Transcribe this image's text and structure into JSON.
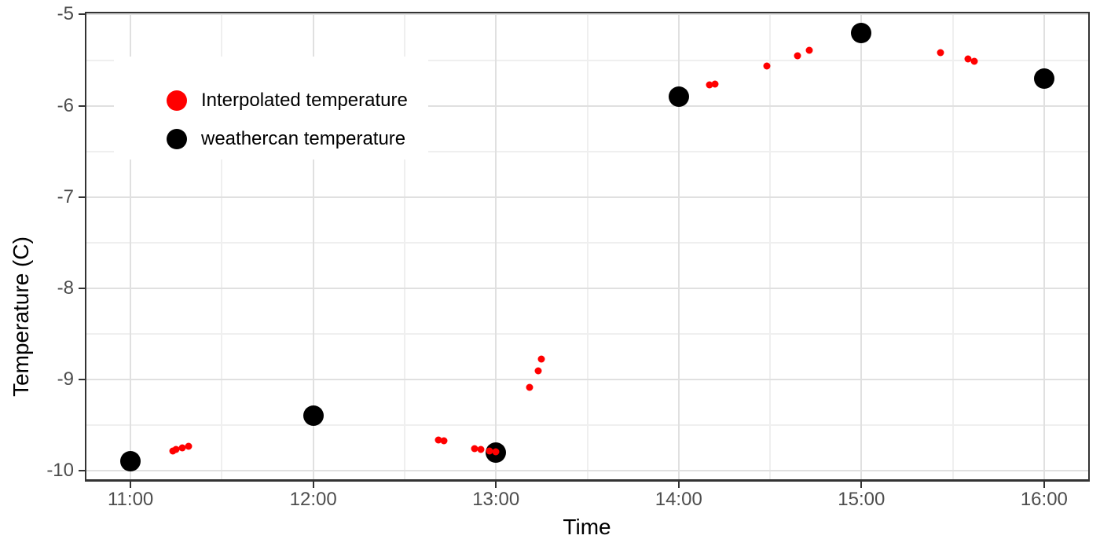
{
  "chart_data": {
    "type": "scatter",
    "title": "",
    "xlabel": "Time",
    "ylabel": "Temperature (C)",
    "grid": true,
    "colors": {
      "background": "#FFFFFF",
      "panel_border": "#333333",
      "grid_major": "#E0E0E0",
      "grid_minor": "#EFEFEF",
      "tick_mark": "#333333",
      "tick_label": "#4D4D4D",
      "axis_title": "#000000",
      "interpolated_point": "#FF0000",
      "weathercan_point": "#000000"
    },
    "x_axis": {
      "domain": [
        "10:45",
        "16:15"
      ],
      "ticks": [
        "11:00",
        "12:00",
        "13:00",
        "14:00",
        "15:00",
        "16:00"
      ],
      "minor_ticks": [
        "11:30",
        "12:30",
        "13:30",
        "14:30",
        "15:30"
      ]
    },
    "y_axis": {
      "domain": [
        -10.12,
        -4.97
      ],
      "ticks": [
        -5,
        -6,
        -7,
        -8,
        -9,
        -10
      ],
      "tick_labels": [
        "-5",
        "-6",
        "-7",
        "-8",
        "-9",
        "-10"
      ],
      "minor_ticks": [
        -5.5,
        -6.5,
        -7.5,
        -8.5,
        -9.5
      ]
    },
    "legend": {
      "position": "top-left-inside",
      "items": [
        {
          "label": "Interpolated temperature",
          "color": "#FF0000"
        },
        {
          "label": "weathercan temperature",
          "color": "#000000"
        }
      ]
    },
    "series": [
      {
        "id": "weathercan",
        "name": "weathercan temperature",
        "color": "#000000",
        "point_diameter": 26,
        "points": [
          {
            "t": "11:00",
            "v": -9.9
          },
          {
            "t": "12:00",
            "v": -9.4
          },
          {
            "t": "13:00",
            "v": -9.8
          },
          {
            "t": "14:00",
            "v": -5.9
          },
          {
            "t": "15:00",
            "v": -5.2
          },
          {
            "t": "16:00",
            "v": -5.7
          }
        ]
      },
      {
        "id": "interpolated",
        "name": "Interpolated temperature",
        "color": "#FF0000",
        "point_diameter": 9,
        "points": [
          {
            "t": "11:14",
            "v": -9.78
          },
          {
            "t": "11:15",
            "v": -9.77
          },
          {
            "t": "11:17",
            "v": -9.75
          },
          {
            "t": "11:19",
            "v": -9.73
          },
          {
            "t": "12:41",
            "v": -9.66
          },
          {
            "t": "12:43",
            "v": -9.67
          },
          {
            "t": "12:53",
            "v": -9.76
          },
          {
            "t": "12:55",
            "v": -9.77
          },
          {
            "t": "12:58",
            "v": -9.78
          },
          {
            "t": "13:00",
            "v": -9.79
          },
          {
            "t": "13:11",
            "v": -9.09
          },
          {
            "t": "13:14",
            "v": -8.91
          },
          {
            "t": "13:15",
            "v": -8.78
          },
          {
            "t": "14:10",
            "v": -5.77
          },
          {
            "t": "14:12",
            "v": -5.76
          },
          {
            "t": "14:29",
            "v": -5.56
          },
          {
            "t": "14:39",
            "v": -5.45
          },
          {
            "t": "14:43",
            "v": -5.39
          },
          {
            "t": "15:26",
            "v": -5.42
          },
          {
            "t": "15:35",
            "v": -5.49
          },
          {
            "t": "15:37",
            "v": -5.51
          }
        ]
      }
    ]
  }
}
